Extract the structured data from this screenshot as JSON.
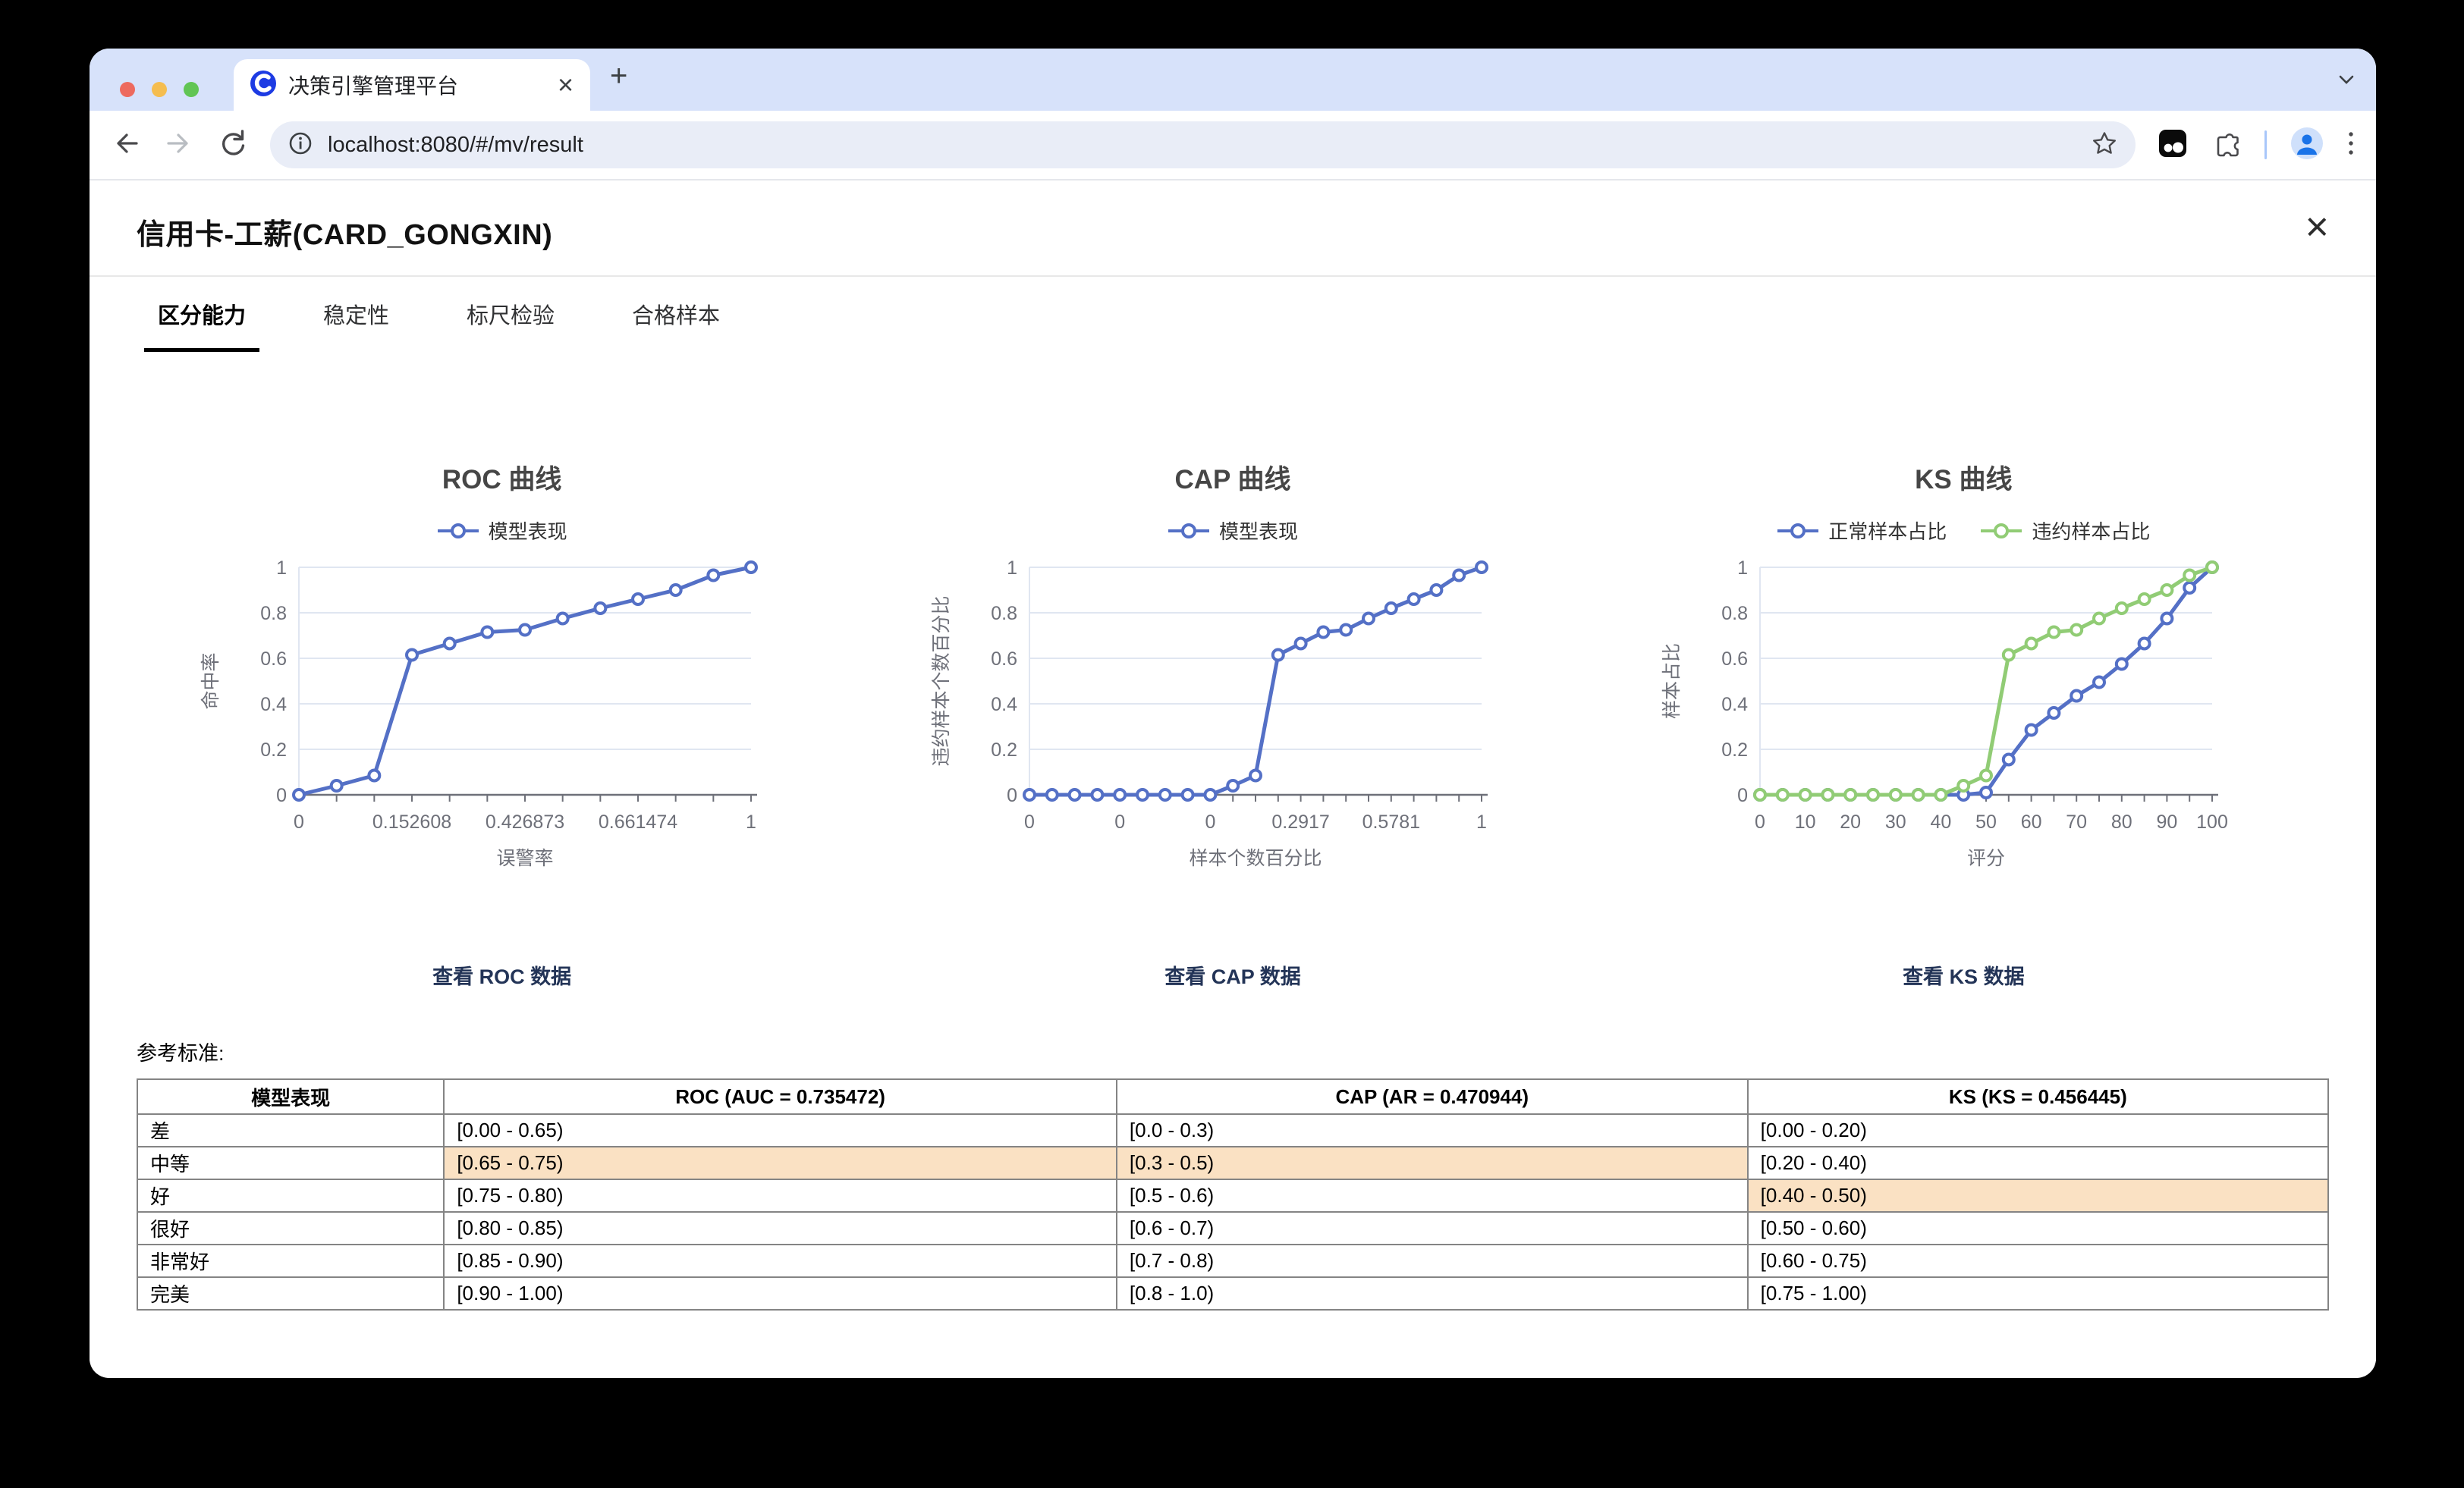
{
  "browser": {
    "tab_title": "决策引擎管理平台",
    "close_tab_label": "×",
    "new_tab_label": "+",
    "url": "localhost:8080/#/mv/result"
  },
  "page": {
    "title": "信用卡-工薪(CARD_GONGXIN)",
    "close_label": "×",
    "tabs": [
      {
        "label": "区分能力",
        "active": true
      },
      {
        "label": "稳定性",
        "active": false
      },
      {
        "label": "标尺检验",
        "active": false
      },
      {
        "label": "合格样本",
        "active": false
      }
    ],
    "links": {
      "roc": "查看 ROC 数据",
      "cap": "查看 CAP 数据",
      "ks": "查看 KS 数据"
    },
    "reference_label": "参考标准:",
    "table": {
      "columns": [
        "模型表现",
        "ROC (AUC = 0.735472)",
        "CAP (AR = 0.470944)",
        "KS (KS = 0.456445)"
      ],
      "rows": [
        {
          "cells": [
            "差",
            "[0.00 - 0.65)",
            "[0.0 - 0.3)",
            "[0.00 - 0.20)"
          ],
          "highlight": []
        },
        {
          "cells": [
            "中等",
            "[0.65 - 0.75)",
            "[0.3 - 0.5)",
            "[0.20 - 0.40)"
          ],
          "highlight": [
            1,
            2
          ]
        },
        {
          "cells": [
            "好",
            "[0.75 - 0.80)",
            "[0.5 - 0.6)",
            "[0.40 - 0.50)"
          ],
          "highlight": [
            3
          ]
        },
        {
          "cells": [
            "很好",
            "[0.80 - 0.85)",
            "[0.6 - 0.7)",
            "[0.50 - 0.60)"
          ],
          "highlight": []
        },
        {
          "cells": [
            "非常好",
            "[0.85 - 0.90)",
            "[0.7 - 0.8)",
            "[0.60 - 0.75)"
          ],
          "highlight": []
        },
        {
          "cells": [
            "完美",
            "[0.90 - 1.00)",
            "[0.8 - 1.0)",
            "[0.75 - 1.00)"
          ],
          "highlight": []
        }
      ]
    }
  },
  "chart_data": [
    {
      "type": "line",
      "title": "ROC 曲线",
      "xlabel": "误警率",
      "ylabel": "命中率",
      "ylim": [
        0,
        1
      ],
      "yticks": [
        0,
        0.2,
        0.4,
        0.6,
        0.8,
        1
      ],
      "grid": true,
      "legend_position": "top",
      "categories": [
        "0",
        "",
        "",
        "0.152608",
        "",
        "",
        "0.426873",
        "",
        "",
        "0.661474",
        "",
        "",
        "1"
      ],
      "series": [
        {
          "name": "模型表现",
          "color": "#5470C6",
          "values": [
            0,
            0.04,
            0.085,
            0.615,
            0.665,
            0.715,
            0.725,
            0.775,
            0.82,
            0.86,
            0.9,
            0.965,
            1
          ]
        }
      ]
    },
    {
      "type": "line",
      "title": "CAP 曲线",
      "xlabel": "样本个数百分比",
      "ylabel": "违约样本个数百分比",
      "ylim": [
        0,
        1
      ],
      "yticks": [
        0,
        0.2,
        0.4,
        0.6,
        0.8,
        1
      ],
      "grid": true,
      "legend_position": "top",
      "categories": [
        "0",
        "",
        "",
        "",
        "0",
        "",
        "",
        "",
        "0",
        "",
        "",
        "",
        "0.2917",
        "",
        "",
        "",
        "0.5781",
        "",
        "",
        "",
        "1"
      ],
      "series": [
        {
          "name": "模型表现",
          "color": "#5470C6",
          "values": [
            0,
            0,
            0,
            0,
            0,
            0,
            0,
            0,
            0,
            0.04,
            0.085,
            0.615,
            0.665,
            0.715,
            0.725,
            0.775,
            0.82,
            0.86,
            0.9,
            0.965,
            1
          ]
        }
      ]
    },
    {
      "type": "line",
      "title": "KS 曲线",
      "xlabel": "评分",
      "ylabel": "样本占比",
      "ylim": [
        0,
        1
      ],
      "yticks": [
        0,
        0.2,
        0.4,
        0.6,
        0.8,
        1
      ],
      "grid": true,
      "legend_position": "top",
      "categories": [
        "0",
        "",
        "10",
        "",
        "20",
        "",
        "30",
        "",
        "40",
        "",
        "50",
        "",
        "60",
        "",
        "70",
        "",
        "80",
        "",
        "90",
        "",
        "100"
      ],
      "series": [
        {
          "name": "正常样本占比",
          "color": "#5470C6",
          "values": [
            0,
            0,
            0,
            0,
            0,
            0,
            0,
            0,
            0,
            0,
            0.01,
            0.155,
            0.285,
            0.36,
            0.435,
            0.495,
            0.575,
            0.665,
            0.775,
            0.91,
            1
          ]
        },
        {
          "name": "违约样本占比",
          "color": "#91CC75",
          "values": [
            0,
            0,
            0,
            0,
            0,
            0,
            0,
            0,
            0,
            0.04,
            0.085,
            0.615,
            0.665,
            0.715,
            0.725,
            0.775,
            0.82,
            0.86,
            0.9,
            0.965,
            1
          ]
        }
      ]
    }
  ],
  "colors": {
    "series_blue": "#5470C6",
    "series_green": "#91CC75",
    "highlight": "#FAE1C3",
    "link": "#233457",
    "axis": "#6E7079",
    "grid": "#E0E6F1"
  }
}
